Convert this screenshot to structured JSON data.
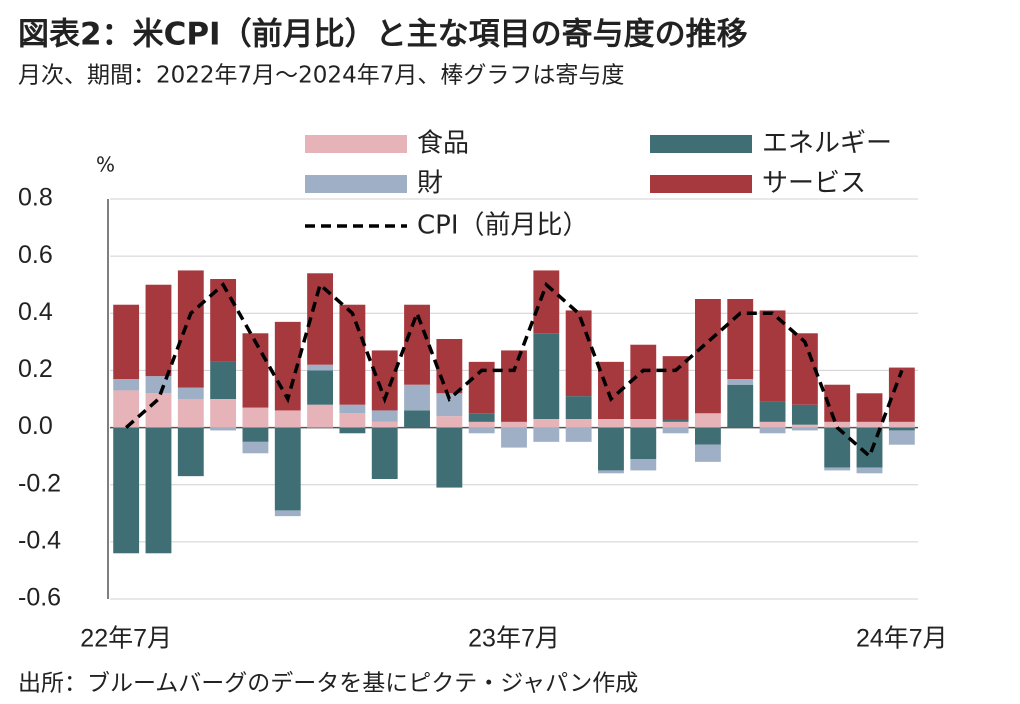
{
  "chart_data": {
    "type": "bar",
    "stacked": true,
    "title": "図表2：米CPI（前月比）と主な項目の寄与度の推移",
    "subtitle": "月次、期間：2022年7月～2024年7月、棒グラフは寄与度",
    "source": "出所：ブルームバーグのデータを基にピクテ・ジャパン作成",
    "y_label": "%",
    "categories": [
      "22年7月",
      null,
      null,
      null,
      null,
      null,
      null,
      null,
      null,
      null,
      null,
      null,
      "23年7月",
      null,
      null,
      null,
      null,
      null,
      null,
      null,
      null,
      null,
      null,
      null,
      "24年7月"
    ],
    "series": [
      {
        "name": "食品",
        "color": "#e6b3b8",
        "values": [
          0.13,
          0.12,
          0.1,
          0.1,
          0.07,
          0.06,
          0.08,
          0.05,
          0.02,
          0.0,
          0.04,
          0.02,
          0.02,
          0.03,
          0.03,
          0.03,
          0.03,
          0.02,
          0.05,
          0.0,
          0.02,
          0.01,
          0.02,
          0.02,
          0.02
        ]
      },
      {
        "name": "エネルギー",
        "color": "#3f6f74",
        "values": [
          -0.44,
          -0.44,
          -0.17,
          0.13,
          -0.05,
          -0.29,
          0.12,
          -0.02,
          -0.18,
          0.06,
          -0.21,
          0.03,
          0.0,
          0.3,
          0.08,
          -0.15,
          -0.11,
          0.01,
          -0.06,
          0.15,
          0.07,
          0.07,
          -0.14,
          -0.14,
          -0.01
        ]
      },
      {
        "name": "財",
        "color": "#9fb0c6",
        "values": [
          0.04,
          0.06,
          0.04,
          -0.01,
          -0.04,
          -0.02,
          0.02,
          0.03,
          0.04,
          0.09,
          0.08,
          -0.02,
          -0.07,
          -0.05,
          -0.05,
          -0.01,
          -0.04,
          -0.02,
          -0.06,
          0.02,
          -0.02,
          -0.01,
          -0.01,
          -0.02,
          -0.05
        ]
      },
      {
        "name": "サービス",
        "color": "#a6393e",
        "values": [
          0.26,
          0.32,
          0.41,
          0.29,
          0.26,
          0.31,
          0.32,
          0.35,
          0.21,
          0.28,
          0.19,
          0.18,
          0.25,
          0.22,
          0.3,
          0.2,
          0.26,
          0.22,
          0.4,
          0.28,
          0.32,
          0.25,
          0.13,
          0.1,
          0.19
        ]
      },
      {
        "name": "CPI（前月比）",
        "type": "line",
        "color": "#000000",
        "values": [
          0.0,
          0.1,
          0.4,
          0.5,
          0.3,
          0.1,
          0.5,
          0.4,
          0.1,
          0.4,
          0.1,
          0.2,
          0.2,
          0.5,
          0.4,
          0.1,
          0.2,
          0.2,
          0.3,
          0.4,
          0.4,
          0.3,
          0.0,
          -0.1,
          0.2
        ]
      }
    ],
    "ylim": [
      -0.6,
      0.8
    ],
    "yticks": [
      -0.6,
      -0.4,
      -0.2,
      {
        "value": 0,
        "label": "0.0"
      },
      0.2,
      0.4,
      0.6,
      0.8
    ],
    "grid": true
  }
}
